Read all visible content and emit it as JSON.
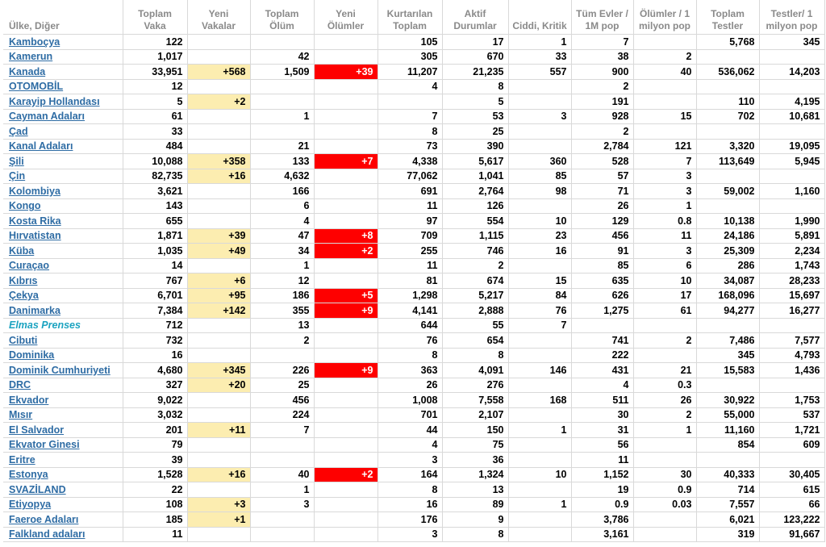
{
  "headers": {
    "country": "Ülke, Diğer",
    "total_cases": "Toplam Vaka",
    "new_cases": "Yeni Vakalar",
    "total_deaths": "Toplam Ölüm",
    "new_deaths": "Yeni Ölümler",
    "total_recovered": "Kurtarılan Toplam",
    "active_cases": "Aktif Durumlar",
    "serious_critical": "Ciddi, Kritik",
    "cases_per_1m": "Tüm Evler / 1M pop",
    "deaths_per_1m": "Ölümler / 1 milyon pop",
    "total_tests": "Toplam Testler",
    "tests_per_1m": "Testler/ 1 milyon pop"
  },
  "colors": {
    "new_cases_bg": "#fcedb0",
    "new_deaths_bg": "#fe0000",
    "link": "#2e6ca4",
    "special_link": "#1ba3c0"
  },
  "rows": [
    {
      "country": "Kamboçya",
      "total_cases": "122",
      "new_cases": "",
      "total_deaths": "",
      "new_deaths": "",
      "total_recovered": "105",
      "active_cases": "17",
      "serious_critical": "1",
      "cases_per_1m": "7",
      "deaths_per_1m": "",
      "total_tests": "5,768",
      "tests_per_1m": "345"
    },
    {
      "country": "Kamerun",
      "total_cases": "1,017",
      "new_cases": "",
      "total_deaths": "42",
      "new_deaths": "",
      "total_recovered": "305",
      "active_cases": "670",
      "serious_critical": "33",
      "cases_per_1m": "38",
      "deaths_per_1m": "2",
      "total_tests": "",
      "tests_per_1m": ""
    },
    {
      "country": "Kanada",
      "total_cases": "33,951",
      "new_cases": "+568",
      "total_deaths": "1,509",
      "new_deaths": "+39",
      "total_recovered": "11,207",
      "active_cases": "21,235",
      "serious_critical": "557",
      "cases_per_1m": "900",
      "deaths_per_1m": "40",
      "total_tests": "536,062",
      "tests_per_1m": "14,203"
    },
    {
      "country": "OTOMOBİL",
      "total_cases": "12",
      "new_cases": "",
      "total_deaths": "",
      "new_deaths": "",
      "total_recovered": "4",
      "active_cases": "8",
      "serious_critical": "",
      "cases_per_1m": "2",
      "deaths_per_1m": "",
      "total_tests": "",
      "tests_per_1m": ""
    },
    {
      "country": "Karayip Hollandası",
      "total_cases": "5",
      "new_cases": "+2",
      "total_deaths": "",
      "new_deaths": "",
      "total_recovered": "",
      "active_cases": "5",
      "serious_critical": "",
      "cases_per_1m": "191",
      "deaths_per_1m": "",
      "total_tests": "110",
      "tests_per_1m": "4,195"
    },
    {
      "country": "Cayman Adaları",
      "total_cases": "61",
      "new_cases": "",
      "total_deaths": "1",
      "new_deaths": "",
      "total_recovered": "7",
      "active_cases": "53",
      "serious_critical": "3",
      "cases_per_1m": "928",
      "deaths_per_1m": "15",
      "total_tests": "702",
      "tests_per_1m": "10,681"
    },
    {
      "country": "Çad",
      "total_cases": "33",
      "new_cases": "",
      "total_deaths": "",
      "new_deaths": "",
      "total_recovered": "8",
      "active_cases": "25",
      "serious_critical": "",
      "cases_per_1m": "2",
      "deaths_per_1m": "",
      "total_tests": "",
      "tests_per_1m": ""
    },
    {
      "country": "Kanal Adaları",
      "total_cases": "484",
      "new_cases": "",
      "total_deaths": "21",
      "new_deaths": "",
      "total_recovered": "73",
      "active_cases": "390",
      "serious_critical": "",
      "cases_per_1m": "2,784",
      "deaths_per_1m": "121",
      "total_tests": "3,320",
      "tests_per_1m": "19,095"
    },
    {
      "country": "Şili",
      "total_cases": "10,088",
      "new_cases": "+358",
      "total_deaths": "133",
      "new_deaths": "+7",
      "total_recovered": "4,338",
      "active_cases": "5,617",
      "serious_critical": "360",
      "cases_per_1m": "528",
      "deaths_per_1m": "7",
      "total_tests": "113,649",
      "tests_per_1m": "5,945"
    },
    {
      "country": "Çin",
      "total_cases": "82,735",
      "new_cases": "+16",
      "total_deaths": "4,632",
      "new_deaths": "",
      "total_recovered": "77,062",
      "active_cases": "1,041",
      "serious_critical": "85",
      "cases_per_1m": "57",
      "deaths_per_1m": "3",
      "total_tests": "",
      "tests_per_1m": ""
    },
    {
      "country": "Kolombiya",
      "total_cases": "3,621",
      "new_cases": "",
      "total_deaths": "166",
      "new_deaths": "",
      "total_recovered": "691",
      "active_cases": "2,764",
      "serious_critical": "98",
      "cases_per_1m": "71",
      "deaths_per_1m": "3",
      "total_tests": "59,002",
      "tests_per_1m": "1,160"
    },
    {
      "country": "Kongo",
      "total_cases": "143",
      "new_cases": "",
      "total_deaths": "6",
      "new_deaths": "",
      "total_recovered": "11",
      "active_cases": "126",
      "serious_critical": "",
      "cases_per_1m": "26",
      "deaths_per_1m": "1",
      "total_tests": "",
      "tests_per_1m": ""
    },
    {
      "country": "Kosta Rika",
      "total_cases": "655",
      "new_cases": "",
      "total_deaths": "4",
      "new_deaths": "",
      "total_recovered": "97",
      "active_cases": "554",
      "serious_critical": "10",
      "cases_per_1m": "129",
      "deaths_per_1m": "0.8",
      "total_tests": "10,138",
      "tests_per_1m": "1,990"
    },
    {
      "country": "Hırvatistan",
      "total_cases": "1,871",
      "new_cases": "+39",
      "total_deaths": "47",
      "new_deaths": "+8",
      "total_recovered": "709",
      "active_cases": "1,115",
      "serious_critical": "23",
      "cases_per_1m": "456",
      "deaths_per_1m": "11",
      "total_tests": "24,186",
      "tests_per_1m": "5,891"
    },
    {
      "country": "Küba",
      "total_cases": "1,035",
      "new_cases": "+49",
      "total_deaths": "34",
      "new_deaths": "+2",
      "total_recovered": "255",
      "active_cases": "746",
      "serious_critical": "16",
      "cases_per_1m": "91",
      "deaths_per_1m": "3",
      "total_tests": "25,309",
      "tests_per_1m": "2,234"
    },
    {
      "country": "Curaçao",
      "total_cases": "14",
      "new_cases": "",
      "total_deaths": "1",
      "new_deaths": "",
      "total_recovered": "11",
      "active_cases": "2",
      "serious_critical": "",
      "cases_per_1m": "85",
      "deaths_per_1m": "6",
      "total_tests": "286",
      "tests_per_1m": "1,743"
    },
    {
      "country": "Kıbrıs",
      "total_cases": "767",
      "new_cases": "+6",
      "total_deaths": "12",
      "new_deaths": "",
      "total_recovered": "81",
      "active_cases": "674",
      "serious_critical": "15",
      "cases_per_1m": "635",
      "deaths_per_1m": "10",
      "total_tests": "34,087",
      "tests_per_1m": "28,233"
    },
    {
      "country": "Çekya",
      "total_cases": "6,701",
      "new_cases": "+95",
      "total_deaths": "186",
      "new_deaths": "+5",
      "total_recovered": "1,298",
      "active_cases": "5,217",
      "serious_critical": "84",
      "cases_per_1m": "626",
      "deaths_per_1m": "17",
      "total_tests": "168,096",
      "tests_per_1m": "15,697"
    },
    {
      "country": "Danimarka",
      "total_cases": "7,384",
      "new_cases": "+142",
      "total_deaths": "355",
      "new_deaths": "+9",
      "total_recovered": "4,141",
      "active_cases": "2,888",
      "serious_critical": "76",
      "cases_per_1m": "1,275",
      "deaths_per_1m": "61",
      "total_tests": "94,277",
      "tests_per_1m": "16,277"
    },
    {
      "country": "Elmas Prenses",
      "special": true,
      "total_cases": "712",
      "new_cases": "",
      "total_deaths": "13",
      "new_deaths": "",
      "total_recovered": "644",
      "active_cases": "55",
      "serious_critical": "7",
      "cases_per_1m": "",
      "deaths_per_1m": "",
      "total_tests": "",
      "tests_per_1m": ""
    },
    {
      "country": "Cibuti",
      "total_cases": "732",
      "new_cases": "",
      "total_deaths": "2",
      "new_deaths": "",
      "total_recovered": "76",
      "active_cases": "654",
      "serious_critical": "",
      "cases_per_1m": "741",
      "deaths_per_1m": "2",
      "total_tests": "7,486",
      "tests_per_1m": "7,577"
    },
    {
      "country": "Dominika",
      "total_cases": "16",
      "new_cases": "",
      "total_deaths": "",
      "new_deaths": "",
      "total_recovered": "8",
      "active_cases": "8",
      "serious_critical": "",
      "cases_per_1m": "222",
      "deaths_per_1m": "",
      "total_tests": "345",
      "tests_per_1m": "4,793"
    },
    {
      "country": "Dominik Cumhuriyeti",
      "total_cases": "4,680",
      "new_cases": "+345",
      "total_deaths": "226",
      "new_deaths": "+9",
      "total_recovered": "363",
      "active_cases": "4,091",
      "serious_critical": "146",
      "cases_per_1m": "431",
      "deaths_per_1m": "21",
      "total_tests": "15,583",
      "tests_per_1m": "1,436"
    },
    {
      "country": "DRC",
      "total_cases": "327",
      "new_cases": "+20",
      "total_deaths": "25",
      "new_deaths": "",
      "total_recovered": "26",
      "active_cases": "276",
      "serious_critical": "",
      "cases_per_1m": "4",
      "deaths_per_1m": "0.3",
      "total_tests": "",
      "tests_per_1m": ""
    },
    {
      "country": "Ekvador",
      "total_cases": "9,022",
      "new_cases": "",
      "total_deaths": "456",
      "new_deaths": "",
      "total_recovered": "1,008",
      "active_cases": "7,558",
      "serious_critical": "168",
      "cases_per_1m": "511",
      "deaths_per_1m": "26",
      "total_tests": "30,922",
      "tests_per_1m": "1,753"
    },
    {
      "country": "Mısır",
      "total_cases": "3,032",
      "new_cases": "",
      "total_deaths": "224",
      "new_deaths": "",
      "total_recovered": "701",
      "active_cases": "2,107",
      "serious_critical": "",
      "cases_per_1m": "30",
      "deaths_per_1m": "2",
      "total_tests": "55,000",
      "tests_per_1m": "537"
    },
    {
      "country": "El Salvador",
      "total_cases": "201",
      "new_cases": "+11",
      "total_deaths": "7",
      "new_deaths": "",
      "total_recovered": "44",
      "active_cases": "150",
      "serious_critical": "1",
      "cases_per_1m": "31",
      "deaths_per_1m": "1",
      "total_tests": "11,160",
      "tests_per_1m": "1,721"
    },
    {
      "country": "Ekvator Ginesi",
      "total_cases": "79",
      "new_cases": "",
      "total_deaths": "",
      "new_deaths": "",
      "total_recovered": "4",
      "active_cases": "75",
      "serious_critical": "",
      "cases_per_1m": "56",
      "deaths_per_1m": "",
      "total_tests": "854",
      "tests_per_1m": "609"
    },
    {
      "country": "Eritre",
      "total_cases": "39",
      "new_cases": "",
      "total_deaths": "",
      "new_deaths": "",
      "total_recovered": "3",
      "active_cases": "36",
      "serious_critical": "",
      "cases_per_1m": "11",
      "deaths_per_1m": "",
      "total_tests": "",
      "tests_per_1m": ""
    },
    {
      "country": "Estonya",
      "total_cases": "1,528",
      "new_cases": "+16",
      "total_deaths": "40",
      "new_deaths": "+2",
      "total_recovered": "164",
      "active_cases": "1,324",
      "serious_critical": "10",
      "cases_per_1m": "1,152",
      "deaths_per_1m": "30",
      "total_tests": "40,333",
      "tests_per_1m": "30,405"
    },
    {
      "country": "SVAZİLAND",
      "total_cases": "22",
      "new_cases": "",
      "total_deaths": "1",
      "new_deaths": "",
      "total_recovered": "8",
      "active_cases": "13",
      "serious_critical": "",
      "cases_per_1m": "19",
      "deaths_per_1m": "0.9",
      "total_tests": "714",
      "tests_per_1m": "615"
    },
    {
      "country": "Etiyopya",
      "total_cases": "108",
      "new_cases": "+3",
      "total_deaths": "3",
      "new_deaths": "",
      "total_recovered": "16",
      "active_cases": "89",
      "serious_critical": "1",
      "cases_per_1m": "0.9",
      "deaths_per_1m": "0.03",
      "total_tests": "7,557",
      "tests_per_1m": "66"
    },
    {
      "country": "Faeroe Adaları",
      "total_cases": "185",
      "new_cases": "+1",
      "total_deaths": "",
      "new_deaths": "",
      "total_recovered": "176",
      "active_cases": "9",
      "serious_critical": "",
      "cases_per_1m": "3,786",
      "deaths_per_1m": "",
      "total_tests": "6,021",
      "tests_per_1m": "123,222"
    },
    {
      "country": "Falkland adaları",
      "total_cases": "11",
      "new_cases": "",
      "total_deaths": "",
      "new_deaths": "",
      "total_recovered": "3",
      "active_cases": "8",
      "serious_critical": "",
      "cases_per_1m": "3,161",
      "deaths_per_1m": "",
      "total_tests": "319",
      "tests_per_1m": "91,667"
    }
  ]
}
